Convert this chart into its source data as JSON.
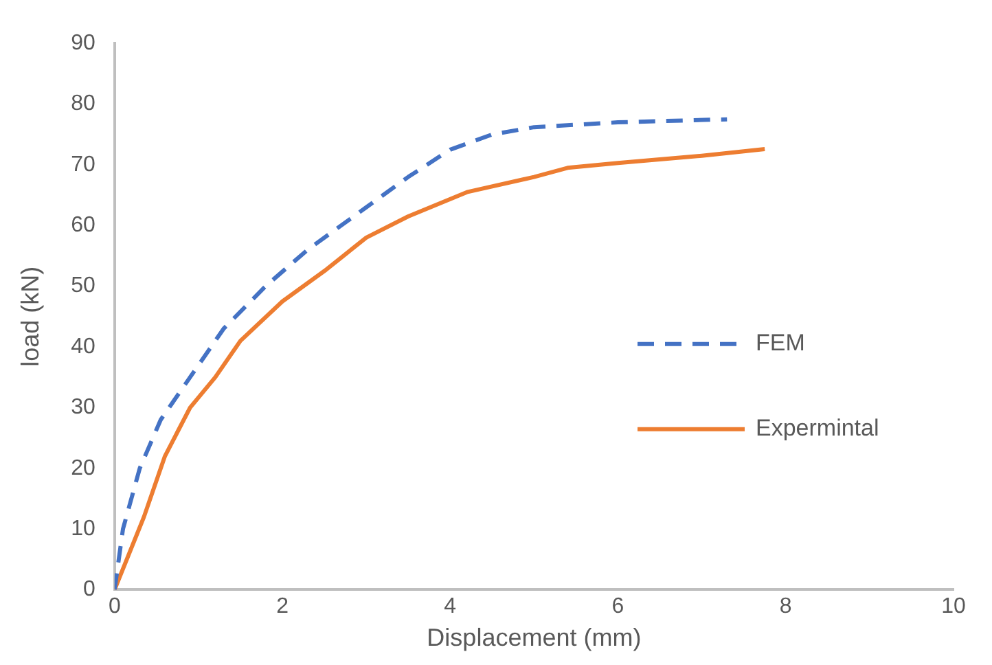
{
  "chart_data": {
    "type": "line",
    "xlabel": "Displacement (mm)",
    "ylabel": "load (kN)",
    "xlim": [
      0,
      10
    ],
    "xticks": [
      0,
      2,
      4,
      6,
      8,
      10
    ],
    "ylim": [
      0,
      90
    ],
    "yticks": [
      0,
      10,
      20,
      30,
      40,
      50,
      60,
      70,
      80,
      90
    ],
    "grid": false,
    "legend": "right",
    "marker": "none",
    "series": [
      {
        "name": "FEM",
        "color": "#4472c4",
        "line_style": "dashed",
        "x": [
          0,
          0.1,
          0.3,
          0.55,
          0.9,
          1.3,
          1.8,
          2.3,
          3,
          3.5,
          4,
          4.5,
          5,
          6,
          7.3
        ],
        "values": [
          0,
          10,
          20,
          28,
          35,
          43,
          50,
          56,
          63,
          68,
          72.5,
          75,
          76.2,
          77,
          77.5
        ]
      },
      {
        "name": "Expermintal",
        "color": "#ed7d31",
        "line_style": "solid",
        "x": [
          0,
          0.35,
          0.6,
          0.9,
          1.2,
          1.5,
          2,
          2.5,
          3,
          3.5,
          4.2,
          5,
          5.4,
          6,
          7,
          7.75
        ],
        "values": [
          0,
          12,
          22,
          30,
          35,
          41,
          47.5,
          52.5,
          58,
          61.5,
          65.5,
          68,
          69.5,
          70.3,
          71.5,
          72.6
        ]
      }
    ]
  }
}
